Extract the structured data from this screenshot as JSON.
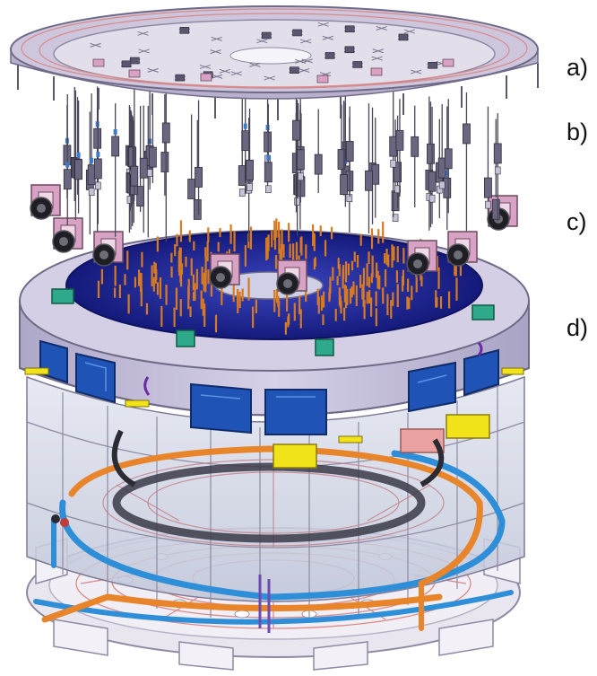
{
  "labels": {
    "a": "a)",
    "b": "b)",
    "c": "c)",
    "d": "d)"
  },
  "colors": {
    "lid_fill": "#cdc6dc",
    "lid_rim": "#b8b0cc",
    "heater_trace": "#d98a8a",
    "housing": "#c8c2de",
    "housing_dark": "#9d97b8",
    "window_blue": "#1f53b5",
    "plate_blue": "#1a1f8e",
    "pin_orange": "#d87a1f",
    "mount_green": "#2eaa8a",
    "detector_pink": "#d7a2c4",
    "clamp_yellow": "#f2e21a",
    "pipe_orange": "#e8842a",
    "pipe_blue": "#2e8fd8",
    "glass": "#d4d8e6"
  }
}
